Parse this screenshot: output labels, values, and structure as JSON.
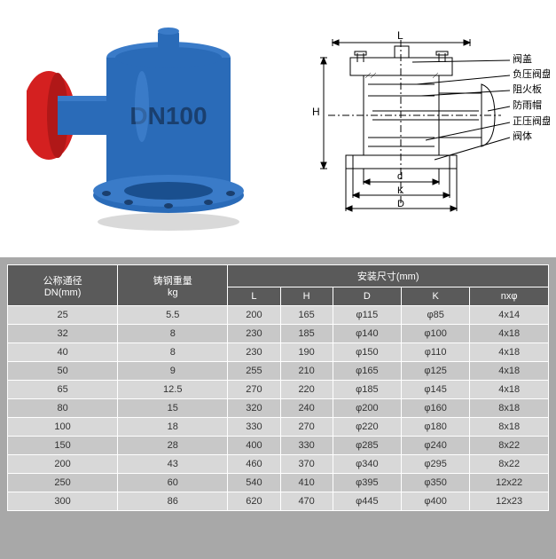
{
  "product_photo": {
    "body_color": "#2a6bb8",
    "cap_color": "#d42020",
    "flange_color": "#2a6bb8",
    "marking_text": "DN100",
    "marking_color": "#1a3f6e"
  },
  "diagram": {
    "stroke_color": "#000000",
    "fill_color": "#ffffff",
    "labels": [
      {
        "text": "阀盖",
        "key": "lid"
      },
      {
        "text": "负压阀盘",
        "key": "neg_disc"
      },
      {
        "text": "阻火板",
        "key": "fire_plate"
      },
      {
        "text": "防雨帽",
        "key": "rain_cap"
      },
      {
        "text": "正压阀盘",
        "key": "pos_disc"
      },
      {
        "text": "阀体",
        "key": "body"
      }
    ],
    "dim_letters": {
      "L": "L",
      "H": "H",
      "d": "d",
      "D": "D",
      "K": "K"
    }
  },
  "table": {
    "header_bg": "#5a5a5a",
    "header_color": "#ffffff",
    "row_odd_bg": "#d8d8d8",
    "row_even_bg": "#c8c8c8",
    "border_color": "#ffffff",
    "col_dn_header1": "公称通径",
    "col_dn_header2": "DN(mm)",
    "col_weight_header1": "铸钢重量",
    "col_weight_header2": "kg",
    "col_install_header": "安装尺寸(mm)",
    "col_L": "L",
    "col_H": "H",
    "col_D": "D",
    "col_K": "K",
    "col_nphi": "nxφ",
    "columns": [
      "DN",
      "weight",
      "L",
      "H",
      "D",
      "K",
      "nphi"
    ],
    "rows": [
      {
        "DN": "25",
        "weight": "5.5",
        "L": "200",
        "H": "165",
        "D": "φ115",
        "K": "φ85",
        "nphi": "4x14"
      },
      {
        "DN": "32",
        "weight": "8",
        "L": "230",
        "H": "185",
        "D": "φ140",
        "K": "φ100",
        "nphi": "4x18"
      },
      {
        "DN": "40",
        "weight": "8",
        "L": "230",
        "H": "190",
        "D": "φ150",
        "K": "φ110",
        "nphi": "4x18"
      },
      {
        "DN": "50",
        "weight": "9",
        "L": "255",
        "H": "210",
        "D": "φ165",
        "K": "φ125",
        "nphi": "4x18"
      },
      {
        "DN": "65",
        "weight": "12.5",
        "L": "270",
        "H": "220",
        "D": "φ185",
        "K": "φ145",
        "nphi": "4x18"
      },
      {
        "DN": "80",
        "weight": "15",
        "L": "320",
        "H": "240",
        "D": "φ200",
        "K": "φ160",
        "nphi": "8x18"
      },
      {
        "DN": "100",
        "weight": "18",
        "L": "330",
        "H": "270",
        "D": "φ220",
        "K": "φ180",
        "nphi": "8x18"
      },
      {
        "DN": "150",
        "weight": "28",
        "L": "400",
        "H": "330",
        "D": "φ285",
        "K": "φ240",
        "nphi": "8x22"
      },
      {
        "DN": "200",
        "weight": "43",
        "L": "460",
        "H": "370",
        "D": "φ340",
        "K": "φ295",
        "nphi": "8x22"
      },
      {
        "DN": "250",
        "weight": "60",
        "L": "540",
        "H": "410",
        "D": "φ395",
        "K": "φ350",
        "nphi": "12x22"
      },
      {
        "DN": "300",
        "weight": "86",
        "L": "620",
        "H": "470",
        "D": "φ445",
        "K": "φ400",
        "nphi": "12x23"
      }
    ]
  }
}
